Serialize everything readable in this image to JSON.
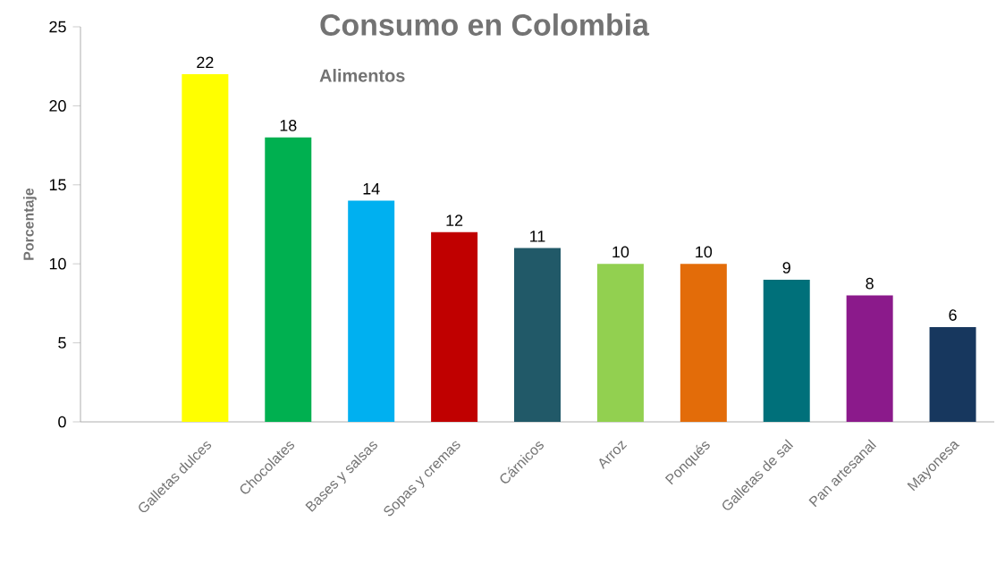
{
  "chart_data": {
    "type": "bar",
    "title": "Consumo en Colombia",
    "subtitle": "Alimentos",
    "ylabel": "Porcentaje",
    "categories": [
      null,
      "Galletas dulces",
      "Chocolates",
      "Bases y salsas",
      "Sopas y cremas",
      "Cárnicos",
      "Arroz",
      "Ponqués",
      "Galletas de sal",
      "Pan artesanal",
      "Mayonesa"
    ],
    "values": [
      null,
      22,
      18,
      14,
      12,
      11,
      10,
      10,
      9,
      8,
      6
    ],
    "colors": [
      "#ffffff",
      "#ffff00",
      "#00b050",
      "#00b0f0",
      "#c00000",
      "#215968",
      "#92d050",
      "#e36c09",
      "#00707a",
      "#8b1a8b",
      "#17375e"
    ],
    "ylim": [
      0,
      25
    ],
    "yticks": [
      0,
      5,
      10,
      15,
      20,
      25
    ],
    "data_labels": true,
    "grid": false
  }
}
